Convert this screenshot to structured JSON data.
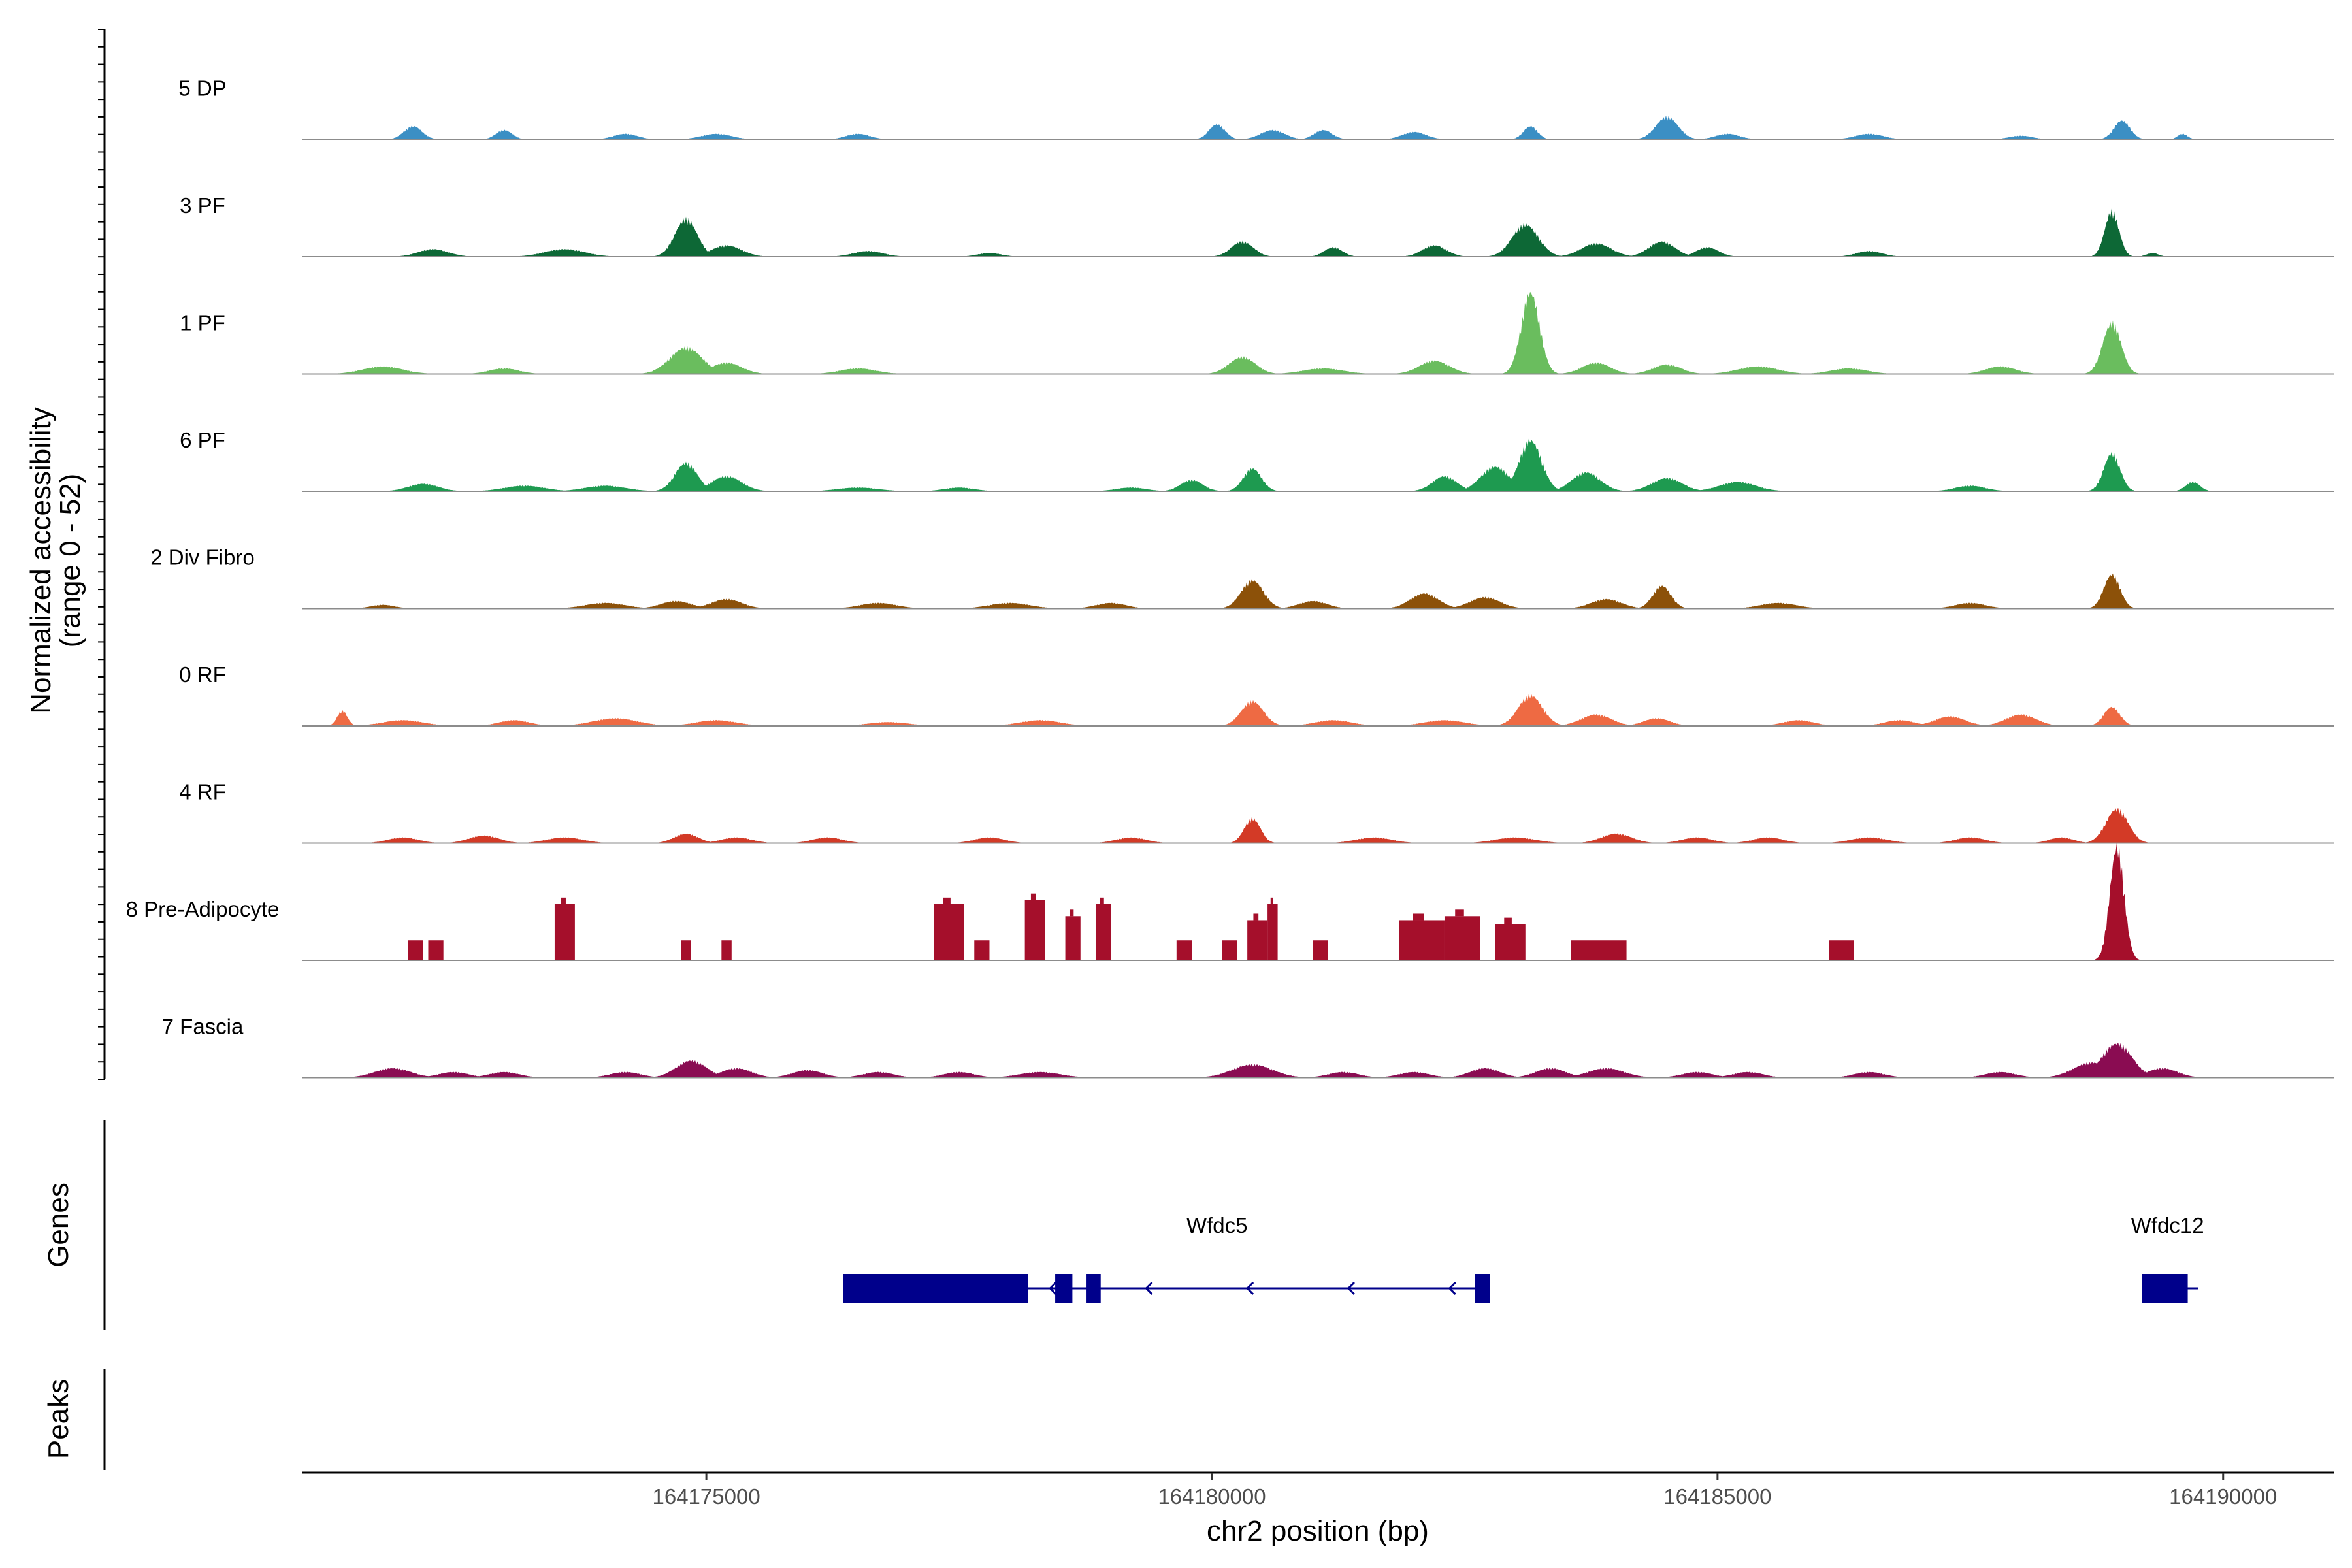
{
  "chart_data": {
    "type": "area",
    "chromosome": "chr2",
    "xlim": [
      164171000,
      164191100
    ],
    "xlabel": "chr2 position (bp)",
    "ylabel": "Normalized accessibility",
    "ylabel_range": "(range 0 - 52)",
    "ylim": [
      0,
      52
    ],
    "x_ticks": [
      164175000,
      164180000,
      164185000,
      164190000
    ],
    "x_tick_labels": [
      "164175000",
      "164180000",
      "164185000",
      "164190000"
    ],
    "tracks": [
      {
        "name": "5 DP",
        "color": "#3B8FC4",
        "peaks": [
          [
            164172100,
            7,
            90
          ],
          [
            164173000,
            5,
            80
          ],
          [
            164174200,
            3,
            120
          ],
          [
            164175100,
            3,
            150
          ],
          [
            164176500,
            3,
            120
          ],
          [
            164180050,
            8,
            80
          ],
          [
            164180600,
            5,
            120
          ],
          [
            164181100,
            5,
            90
          ],
          [
            164182000,
            4,
            120
          ],
          [
            164183150,
            7,
            70
          ],
          [
            164184500,
            12,
            110
          ],
          [
            164185100,
            3,
            120
          ],
          [
            164186500,
            3,
            140
          ],
          [
            164188000,
            2,
            120
          ],
          [
            164189000,
            10,
            80
          ],
          [
            164189600,
            3,
            50
          ]
        ]
      },
      {
        "name": "3 PF",
        "color": "#0D6836",
        "peaks": [
          [
            164172300,
            4,
            150
          ],
          [
            164173600,
            4,
            200
          ],
          [
            164174800,
            20,
            110
          ],
          [
            164175200,
            6,
            150
          ],
          [
            164176600,
            3,
            150
          ],
          [
            164177800,
            2,
            120
          ],
          [
            164180300,
            8,
            110
          ],
          [
            164181200,
            5,
            90
          ],
          [
            164182200,
            6,
            120
          ],
          [
            164183100,
            17,
            130
          ],
          [
            164183800,
            7,
            150
          ],
          [
            164184450,
            8,
            130
          ],
          [
            164184900,
            5,
            110
          ],
          [
            164186500,
            3,
            130
          ],
          [
            164188900,
            24,
            70
          ],
          [
            164189300,
            2,
            60
          ]
        ]
      },
      {
        "name": "1 PF",
        "color": "#6ABD5E",
        "peaks": [
          [
            164171800,
            4,
            200
          ],
          [
            164173000,
            3,
            150
          ],
          [
            164174800,
            14,
            160
          ],
          [
            164175200,
            6,
            150
          ],
          [
            164176500,
            3,
            180
          ],
          [
            164180300,
            9,
            130
          ],
          [
            164181100,
            3,
            200
          ],
          [
            164182200,
            7,
            150
          ],
          [
            164183150,
            43,
            90
          ],
          [
            164183800,
            6,
            140
          ],
          [
            164184500,
            5,
            140
          ],
          [
            164185400,
            4,
            200
          ],
          [
            164186300,
            3,
            180
          ],
          [
            164187800,
            4,
            150
          ],
          [
            164188900,
            27,
            90
          ]
        ]
      },
      {
        "name": "6 PF",
        "color": "#1E9A50",
        "peaks": [
          [
            164172200,
            4,
            150
          ],
          [
            164173200,
            3,
            200
          ],
          [
            164174000,
            3,
            200
          ],
          [
            164174800,
            15,
            110
          ],
          [
            164175200,
            8,
            150
          ],
          [
            164176500,
            2,
            200
          ],
          [
            164177500,
            2,
            150
          ],
          [
            164179200,
            2,
            150
          ],
          [
            164179800,
            6,
            110
          ],
          [
            164180400,
            12,
            90
          ],
          [
            164182300,
            8,
            120
          ],
          [
            164182800,
            13,
            140
          ],
          [
            164183150,
            27,
            110
          ],
          [
            164183700,
            10,
            140
          ],
          [
            164184500,
            7,
            150
          ],
          [
            164185200,
            5,
            180
          ],
          [
            164187500,
            3,
            150
          ],
          [
            164188900,
            20,
            80
          ],
          [
            164189700,
            5,
            70
          ]
        ]
      },
      {
        "name": "2 Div Fibro",
        "color": "#8C5109",
        "peaks": [
          [
            164171800,
            2,
            120
          ],
          [
            164174000,
            3,
            200
          ],
          [
            164174700,
            4,
            150
          ],
          [
            164175200,
            5,
            150
          ],
          [
            164176700,
            3,
            180
          ],
          [
            164178000,
            3,
            200
          ],
          [
            164179000,
            3,
            150
          ],
          [
            164180400,
            15,
            110
          ],
          [
            164181000,
            4,
            140
          ],
          [
            164182100,
            8,
            140
          ],
          [
            164182700,
            6,
            150
          ],
          [
            164183900,
            5,
            150
          ],
          [
            164184450,
            12,
            90
          ],
          [
            164185600,
            3,
            180
          ],
          [
            164187500,
            3,
            150
          ],
          [
            164188900,
            18,
            80
          ]
        ]
      },
      {
        "name": "0 RF",
        "color": "#EE6A43",
        "peaks": [
          [
            164171400,
            8,
            50
          ],
          [
            164172000,
            3,
            200
          ],
          [
            164173100,
            3,
            150
          ],
          [
            164174100,
            4,
            220
          ],
          [
            164175100,
            3,
            200
          ],
          [
            164176800,
            2,
            200
          ],
          [
            164178300,
            3,
            200
          ],
          [
            164180400,
            13,
            110
          ],
          [
            164181200,
            3,
            180
          ],
          [
            164182300,
            3,
            200
          ],
          [
            164183150,
            16,
            120
          ],
          [
            164183800,
            6,
            150
          ],
          [
            164184400,
            4,
            130
          ],
          [
            164185800,
            3,
            150
          ],
          [
            164186800,
            3,
            150
          ],
          [
            164187300,
            5,
            150
          ],
          [
            164188000,
            6,
            150
          ],
          [
            164188900,
            10,
            80
          ]
        ]
      },
      {
        "name": "4 RF",
        "color": "#D33A26",
        "peaks": [
          [
            164172000,
            3,
            150
          ],
          [
            164172800,
            4,
            150
          ],
          [
            164173600,
            3,
            180
          ],
          [
            164174800,
            5,
            120
          ],
          [
            164175300,
            3,
            150
          ],
          [
            164176200,
            3,
            150
          ],
          [
            164177800,
            3,
            150
          ],
          [
            164179200,
            3,
            150
          ],
          [
            164180400,
            13,
            80
          ],
          [
            164181600,
            3,
            180
          ],
          [
            164183000,
            3,
            200
          ],
          [
            164184000,
            5,
            150
          ],
          [
            164184800,
            3,
            150
          ],
          [
            164185500,
            3,
            150
          ],
          [
            164186500,
            3,
            180
          ],
          [
            164187500,
            3,
            150
          ],
          [
            164188400,
            3,
            120
          ],
          [
            164188950,
            18,
            110
          ]
        ]
      },
      {
        "name": "8 Pre-Adipocyte",
        "color": "#A50F2B",
        "blocks": [
          [
            164172050,
            164172200,
            10
          ],
          [
            164172250,
            164172400,
            10
          ],
          [
            164173500,
            164173700,
            28
          ],
          [
            164174750,
            164174850,
            10
          ],
          [
            164175150,
            164175250,
            10
          ],
          [
            164177250,
            164177550,
            28
          ],
          [
            164177650,
            164177800,
            10
          ],
          [
            164178150,
            164178350,
            30
          ],
          [
            164178550,
            164178700,
            22
          ],
          [
            164178850,
            164179000,
            28
          ],
          [
            164179650,
            164179800,
            10
          ],
          [
            164180100,
            164180250,
            10
          ],
          [
            164180350,
            164180550,
            20
          ],
          [
            164180550,
            164180650,
            28
          ],
          [
            164181000,
            164181150,
            10
          ],
          [
            164181850,
            164182300,
            20
          ],
          [
            164182300,
            164182650,
            22
          ],
          [
            164182800,
            164183100,
            18
          ],
          [
            164183550,
            164183700,
            10
          ],
          [
            164183700,
            164184100,
            10
          ],
          [
            164186100,
            164186350,
            10
          ]
        ],
        "peaks": [
          [
            164188950,
            60,
            70
          ]
        ]
      },
      {
        "name": "7 Fascia",
        "color": "#8A0C52",
        "peaks": [
          [
            164171900,
            5,
            180
          ],
          [
            164172500,
            3,
            150
          ],
          [
            164173000,
            3,
            150
          ],
          [
            164174200,
            3,
            150
          ],
          [
            164174850,
            9,
            150
          ],
          [
            164175300,
            5,
            150
          ],
          [
            164176000,
            4,
            150
          ],
          [
            164176700,
            3,
            150
          ],
          [
            164177500,
            3,
            150
          ],
          [
            164178300,
            3,
            200
          ],
          [
            164180400,
            7,
            200
          ],
          [
            164181300,
            3,
            150
          ],
          [
            164182000,
            3,
            150
          ],
          [
            164182700,
            5,
            150
          ],
          [
            164183350,
            5,
            150
          ],
          [
            164183900,
            5,
            180
          ],
          [
            164184800,
            3,
            150
          ],
          [
            164185300,
            3,
            150
          ],
          [
            164186500,
            3,
            150
          ],
          [
            164187800,
            3,
            150
          ],
          [
            164188700,
            8,
            180
          ],
          [
            164188950,
            18,
            150
          ],
          [
            164189400,
            5,
            150
          ]
        ]
      }
    ],
    "genes": [
      {
        "name": "Wfdc5",
        "label_x": 164180050,
        "strand": "-",
        "line": [
          164176350,
          164182750
        ],
        "exons": [
          [
            164176350,
            164178180
          ],
          [
            164178450,
            164178620
          ],
          [
            164178760,
            164178900
          ],
          [
            164182600,
            164182750
          ]
        ],
        "arrows": [
          164178400,
          164179350,
          164180350,
          164181350,
          164182350
        ]
      },
      {
        "name": "Wfdc12",
        "label_x": 164189450,
        "strand": "+",
        "line": [
          164189200,
          164189700
        ],
        "exons": [
          [
            164189200,
            164189650
          ]
        ],
        "arrows": []
      }
    ],
    "panels": {
      "genes_title": "Genes",
      "peaks_title": "Peaks"
    }
  }
}
